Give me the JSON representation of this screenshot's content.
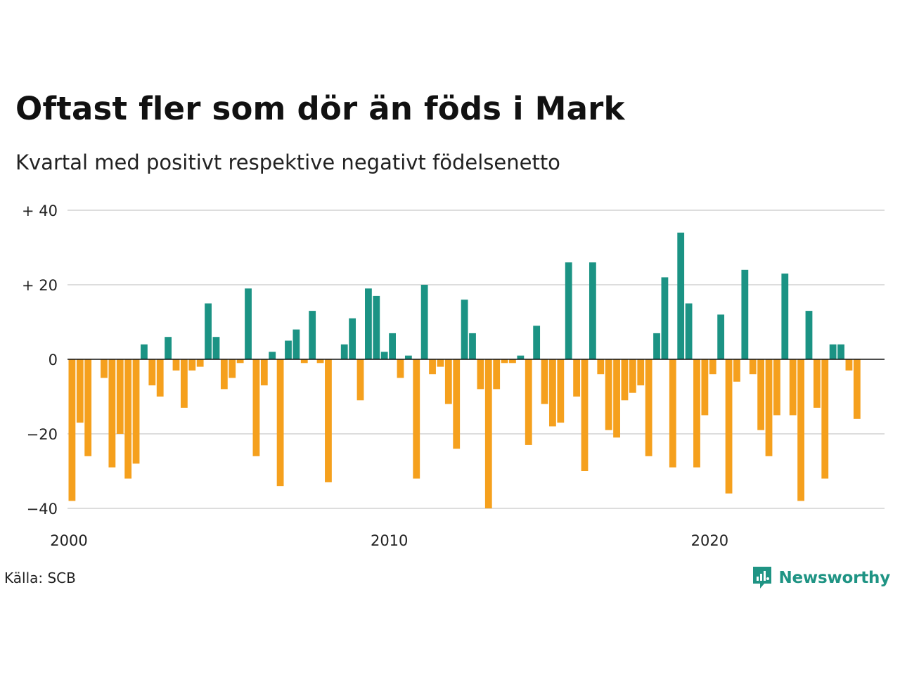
{
  "title": "Oftast fler som dör än föds i Mark",
  "subtitle": "Kvartal med positivt respektive negativt födelsenetto",
  "source": "Källa: SCB",
  "brand": {
    "name": "Newsworthy",
    "icon": "newsworthy-logo-icon",
    "color": "#1f9484"
  },
  "colors": {
    "positive": "#1b9384",
    "negative": "#f5a01d",
    "grid": "#dddddd",
    "zero": "#111111"
  },
  "chart_data": {
    "type": "bar",
    "x_start": 2000,
    "x_end": 2025.5,
    "ylim": [
      -40,
      40
    ],
    "y_ticks": [
      40,
      20,
      0,
      -20,
      -40
    ],
    "y_tick_labels": [
      "+ 40",
      "+ 20",
      "0",
      "−20",
      "−40"
    ],
    "x_ticks": [
      2000,
      2010,
      2020
    ],
    "x_tick_labels": [
      "2000",
      "2010",
      "2020"
    ],
    "grid": true,
    "xlabel": "",
    "ylabel": "",
    "values": [
      -38,
      -17,
      -26,
      0,
      -5,
      -29,
      -20,
      -32,
      -28,
      4,
      -7,
      -10,
      6,
      -3,
      -13,
      -3,
      -2,
      15,
      6,
      -8,
      -5,
      -1,
      19,
      -26,
      -7,
      2,
      -34,
      5,
      8,
      -1,
      13,
      -1,
      -33,
      0,
      4,
      11,
      -11,
      19,
      17,
      2,
      7,
      -5,
      1,
      -32,
      20,
      -4,
      -2,
      -12,
      -24,
      16,
      7,
      -8,
      -40,
      -8,
      -1,
      -1,
      1,
      -23,
      9,
      -12,
      -18,
      -17,
      26,
      -10,
      -30,
      26,
      -4,
      -19,
      -21,
      -11,
      -9,
      -7,
      -26,
      7,
      22,
      -29,
      34,
      15,
      -29,
      -15,
      -4,
      12,
      -36,
      -6,
      24,
      -4,
      -19,
      -26,
      -15,
      23,
      -15,
      -38,
      13,
      -13,
      -32,
      4,
      4,
      -3,
      -16
    ]
  }
}
